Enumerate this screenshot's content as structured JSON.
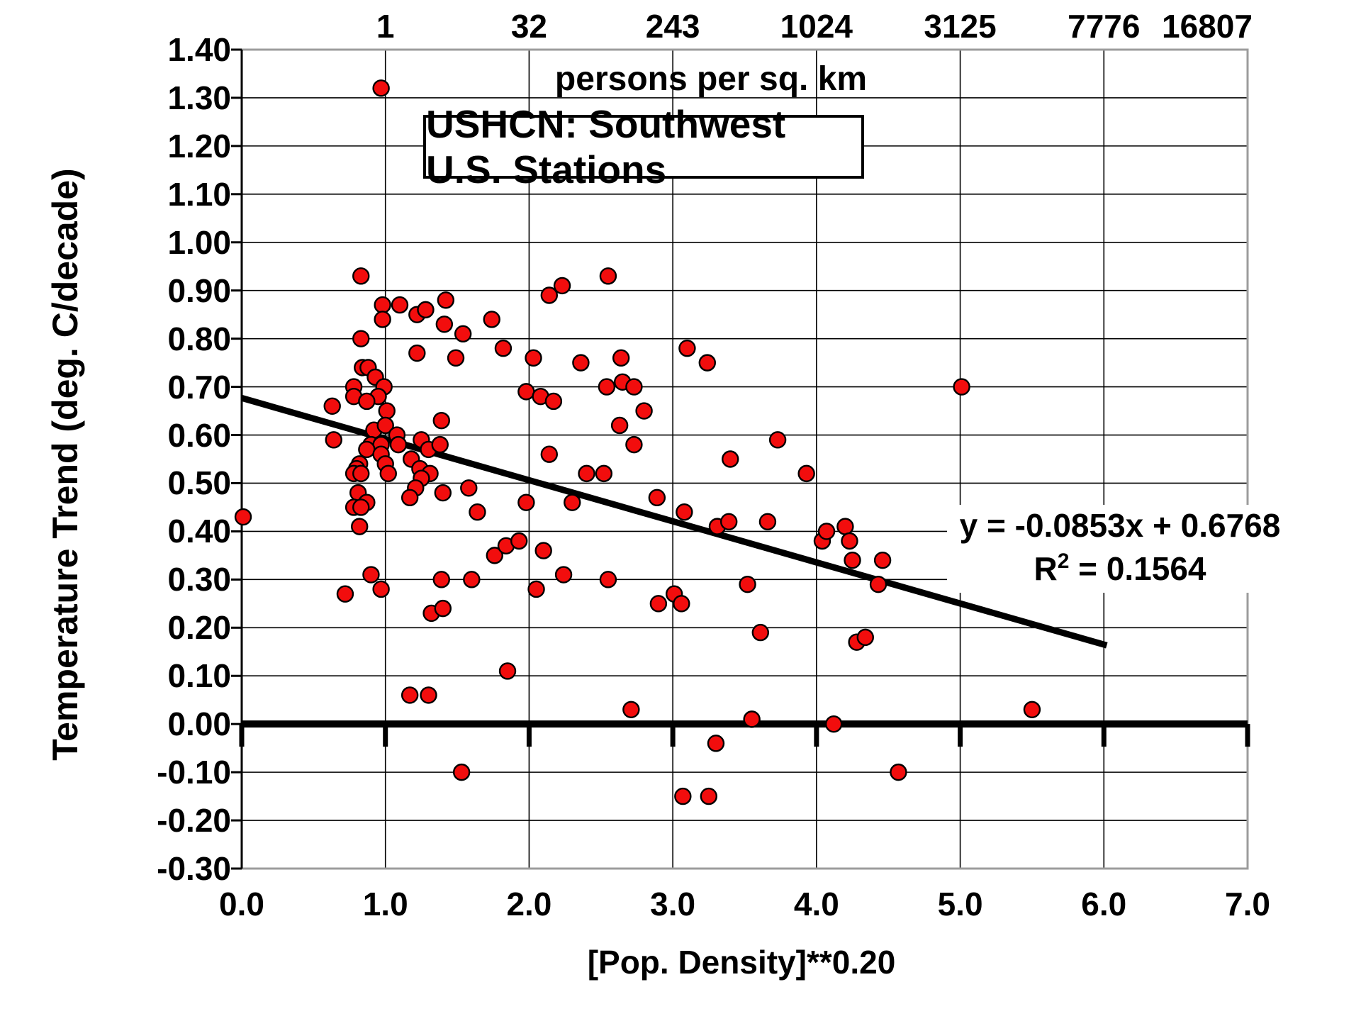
{
  "chart_data": {
    "type": "scatter",
    "title": "USHCN: Southwest U.S. Stations",
    "top_axis_label": "persons per sq. km",
    "xlabel": "[Pop. Density]**0.20",
    "ylabel": "Temperature Trend (deg. C/decade)",
    "xlim": [
      0,
      7
    ],
    "ylim": [
      -0.3,
      1.4
    ],
    "grid": "on",
    "x_ticks": [
      {
        "label": "0.0",
        "value": 0
      },
      {
        "label": "1.0",
        "value": 1
      },
      {
        "label": "2.0",
        "value": 2
      },
      {
        "label": "3.0",
        "value": 3
      },
      {
        "label": "4.0",
        "value": 4
      },
      {
        "label": "5.0",
        "value": 5
      },
      {
        "label": "6.0",
        "value": 6
      },
      {
        "label": "7.0",
        "value": 7
      }
    ],
    "y_ticks": [
      {
        "label": "1.40",
        "value": 1.4
      },
      {
        "label": "1.30",
        "value": 1.3
      },
      {
        "label": "1.20",
        "value": 1.2
      },
      {
        "label": "1.10",
        "value": 1.1
      },
      {
        "label": "1.00",
        "value": 1.0
      },
      {
        "label": "0.90",
        "value": 0.9
      },
      {
        "label": "0.80",
        "value": 0.8
      },
      {
        "label": "0.70",
        "value": 0.7
      },
      {
        "label": "0.60",
        "value": 0.6
      },
      {
        "label": "0.50",
        "value": 0.5
      },
      {
        "label": "0.40",
        "value": 0.4
      },
      {
        "label": "0.30",
        "value": 0.3
      },
      {
        "label": "0.20",
        "value": 0.2
      },
      {
        "label": "0.10",
        "value": 0.1
      },
      {
        "label": "0.00",
        "value": 0.0
      },
      {
        "label": "-0.10",
        "value": -0.1
      },
      {
        "label": "-0.20",
        "value": -0.2
      },
      {
        "label": "-0.30",
        "value": -0.3
      }
    ],
    "top_ticks": [
      {
        "label": "1",
        "x": 1,
        "dx": 0
      },
      {
        "label": "32",
        "x": 2,
        "dx": 0
      },
      {
        "label": "243",
        "x": 3,
        "dx": 0
      },
      {
        "label": "1024",
        "x": 4,
        "dx": 0
      },
      {
        "label": "3125",
        "x": 5,
        "dx": 0
      },
      {
        "label": "7776",
        "x": 6,
        "dx": 0
      },
      {
        "label": "16807",
        "x": 7,
        "dx": -57
      }
    ],
    "trendline": {
      "slope": -0.0853,
      "intercept": 0.6768,
      "x_start": 0,
      "x_end": 6.02
    },
    "equation": {
      "line1": "y = -0.0853x + 0.6768",
      "r2_base": "R",
      "r2_sup": "2",
      "r2_rest": " = 0.1564"
    },
    "colors": {
      "marker": "#f20d0d",
      "marker_border": "#000000",
      "grid": "#000000",
      "frame": "#9c9c9c",
      "axis": "#000000",
      "trend": "#000000",
      "background": "#ffffff",
      "text": "#000000"
    },
    "marker_radius": 11,
    "points": [
      [
        0.97,
        1.32
      ],
      [
        0.83,
        0.93
      ],
      [
        0.98,
        0.87
      ],
      [
        0.98,
        0.84
      ],
      [
        1.1,
        0.87
      ],
      [
        1.22,
        0.85
      ],
      [
        1.28,
        0.86
      ],
      [
        1.42,
        0.88
      ],
      [
        1.41,
        0.83
      ],
      [
        1.54,
        0.81
      ],
      [
        1.74,
        0.84
      ],
      [
        1.22,
        0.77
      ],
      [
        1.49,
        0.76
      ],
      [
        1.82,
        0.78
      ],
      [
        2.03,
        0.76
      ],
      [
        2.36,
        0.75
      ],
      [
        2.14,
        0.89
      ],
      [
        2.23,
        0.91
      ],
      [
        0.83,
        0.8
      ],
      [
        0.84,
        0.74
      ],
      [
        0.88,
        0.74
      ],
      [
        0.93,
        0.72
      ],
      [
        0.78,
        0.7
      ],
      [
        0.78,
        0.68
      ],
      [
        0.99,
        0.7
      ],
      [
        0.95,
        0.68
      ],
      [
        0.87,
        0.67
      ],
      [
        0.63,
        0.66
      ],
      [
        1.01,
        0.65
      ],
      [
        1.98,
        0.69
      ],
      [
        2.08,
        0.68
      ],
      [
        2.17,
        0.67
      ],
      [
        1.39,
        0.63
      ],
      [
        0.92,
        0.61
      ],
      [
        1.0,
        0.62
      ],
      [
        0.9,
        0.58
      ],
      [
        0.97,
        0.58
      ],
      [
        1.08,
        0.6
      ],
      [
        1.09,
        0.58
      ],
      [
        0.87,
        0.57
      ],
      [
        0.97,
        0.56
      ],
      [
        1.0,
        0.54
      ],
      [
        1.02,
        0.52
      ],
      [
        0.64,
        0.59
      ],
      [
        1.25,
        0.59
      ],
      [
        1.3,
        0.57
      ],
      [
        1.38,
        0.58
      ],
      [
        1.18,
        0.55
      ],
      [
        0.82,
        0.54
      ],
      [
        0.8,
        0.53
      ],
      [
        0.78,
        0.52
      ],
      [
        0.83,
        0.52
      ],
      [
        1.24,
        0.53
      ],
      [
        1.31,
        0.52
      ],
      [
        1.25,
        0.51
      ],
      [
        1.21,
        0.49
      ],
      [
        1.58,
        0.49
      ],
      [
        0.81,
        0.48
      ],
      [
        1.17,
        0.47
      ],
      [
        1.4,
        0.48
      ],
      [
        0.87,
        0.46
      ],
      [
        0.78,
        0.45
      ],
      [
        0.83,
        0.45
      ],
      [
        1.64,
        0.44
      ],
      [
        1.98,
        0.46
      ],
      [
        2.3,
        0.46
      ],
      [
        2.14,
        0.56
      ],
      [
        2.4,
        0.52
      ],
      [
        0.82,
        0.41
      ],
      [
        1.76,
        0.35
      ],
      [
        1.84,
        0.37
      ],
      [
        1.93,
        0.38
      ],
      [
        2.1,
        0.36
      ],
      [
        2.24,
        0.31
      ],
      [
        0.9,
        0.31
      ],
      [
        0.97,
        0.28
      ],
      [
        0.72,
        0.27
      ],
      [
        1.39,
        0.3
      ],
      [
        1.6,
        0.3
      ],
      [
        2.05,
        0.28
      ],
      [
        1.32,
        0.23
      ],
      [
        1.4,
        0.24
      ],
      [
        1.85,
        0.11
      ],
      [
        1.17,
        0.06
      ],
      [
        1.3,
        0.06
      ],
      [
        1.53,
        -0.1
      ],
      [
        2.55,
        0.93
      ],
      [
        2.64,
        0.76
      ],
      [
        3.1,
        0.78
      ],
      [
        3.24,
        0.75
      ],
      [
        2.54,
        0.7
      ],
      [
        2.65,
        0.71
      ],
      [
        2.73,
        0.7
      ],
      [
        2.8,
        0.65
      ],
      [
        2.63,
        0.62
      ],
      [
        2.73,
        0.58
      ],
      [
        2.52,
        0.52
      ],
      [
        3.73,
        0.59
      ],
      [
        3.4,
        0.55
      ],
      [
        3.93,
        0.52
      ],
      [
        2.89,
        0.47
      ],
      [
        3.08,
        0.44
      ],
      [
        3.31,
        0.41
      ],
      [
        3.39,
        0.42
      ],
      [
        3.66,
        0.42
      ],
      [
        4.04,
        0.38
      ],
      [
        4.07,
        0.4
      ],
      [
        4.2,
        0.41
      ],
      [
        4.23,
        0.38
      ],
      [
        4.25,
        0.34
      ],
      [
        2.55,
        0.3
      ],
      [
        3.52,
        0.29
      ],
      [
        3.01,
        0.27
      ],
      [
        3.06,
        0.25
      ],
      [
        2.9,
        0.25
      ],
      [
        3.61,
        0.19
      ],
      [
        4.28,
        0.17
      ],
      [
        4.34,
        0.18
      ],
      [
        2.71,
        0.03
      ],
      [
        3.55,
        0.01
      ],
      [
        4.12,
        0.0
      ],
      [
        3.3,
        -0.04
      ],
      [
        3.07,
        -0.15
      ],
      [
        3.25,
        -0.15
      ],
      [
        5.01,
        0.7
      ],
      [
        4.46,
        0.34
      ],
      [
        4.43,
        0.29
      ],
      [
        5.5,
        0.03
      ],
      [
        4.57,
        -0.1
      ],
      [
        0.01,
        0.43
      ]
    ]
  }
}
